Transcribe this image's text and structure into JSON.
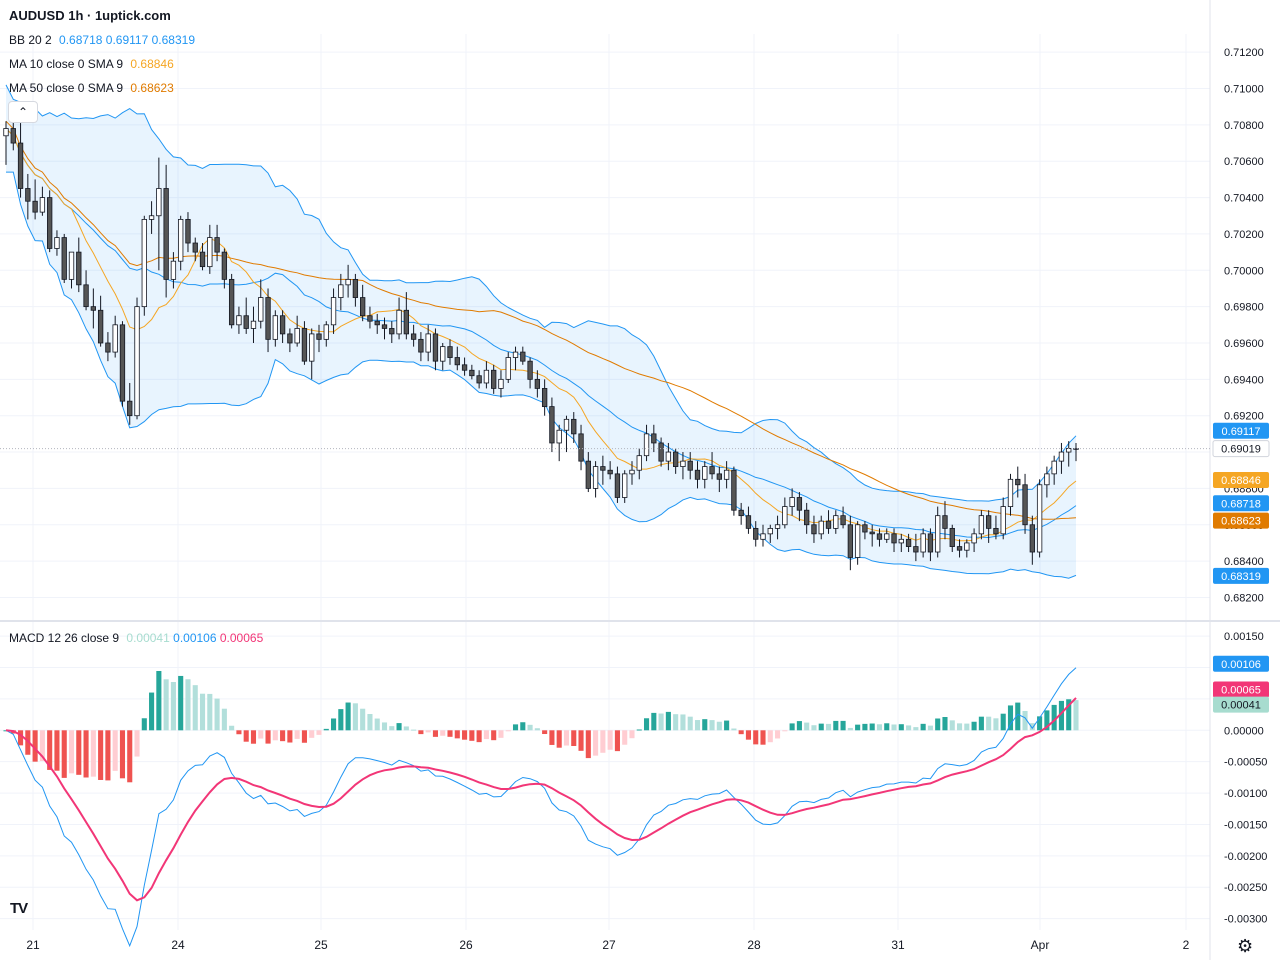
{
  "header": {
    "title": "AUDUSD 1h · 1uptick.com",
    "bb": {
      "label": "BB 20 2",
      "values": [
        "0.68718",
        "0.69117",
        "0.68319"
      ],
      "color": "#2196f3"
    },
    "ma10": {
      "label": "MA 10 close 0 SMA 9",
      "value": "0.68846",
      "color": "#f5a623"
    },
    "ma50": {
      "label": "MA 50 close 0 SMA 9",
      "value": "0.68623",
      "color": "#e07b00"
    },
    "macd": {
      "label": "MACD 12 26 close 9",
      "values": [
        "0.00041",
        "0.00106",
        "0.00065"
      ],
      "colors": [
        "#a7dccf",
        "#2196f3",
        "#f23677"
      ]
    }
  },
  "collapse_icon": "chevron-up-icon",
  "logo_text": "TV",
  "settings_icon": "gear-icon",
  "chart_data": [
    {
      "type": "candlestick",
      "title": "AUDUSD 1h",
      "y_ticks": [
        "0.71200",
        "0.71000",
        "0.70800",
        "0.70600",
        "0.70400",
        "0.70200",
        "0.70000",
        "0.69800",
        "0.69600",
        "0.69400",
        "0.69200",
        "0.69000",
        "0.68800",
        "0.68600",
        "0.68400",
        "0.68200"
      ],
      "ylim": [
        0.6812,
        0.713
      ],
      "x_ticks": [
        "21",
        "24",
        "25",
        "26",
        "27",
        "28",
        "31",
        "Apr",
        "2"
      ],
      "last_price": "0.69019",
      "price_labels": [
        {
          "text": "0.69117",
          "value": 0.69117,
          "color": "#2196f3"
        },
        {
          "text": "0.69019",
          "value": 0.69019,
          "color": "#ffffff"
        },
        {
          "text": "0.68846",
          "value": 0.68846,
          "color": "#f5a623"
        },
        {
          "text": "0.68718",
          "value": 0.68718,
          "color": "#2196f3"
        },
        {
          "text": "0.68623",
          "value": 0.68623,
          "color": "#e07b00"
        },
        {
          "text": "0.68319",
          "value": 0.68319,
          "color": "#2196f3"
        }
      ],
      "ohlc": [
        [
          0.7074,
          0.7082,
          0.7058,
          0.7078
        ],
        [
          0.7078,
          0.7083,
          0.7066,
          0.707
        ],
        [
          0.707,
          0.7081,
          0.704,
          0.7045
        ],
        [
          0.7045,
          0.7053,
          0.7028,
          0.7038
        ],
        [
          0.7038,
          0.705,
          0.7028,
          0.7032
        ],
        [
          0.7032,
          0.7046,
          0.703,
          0.704
        ],
        [
          0.704,
          0.7044,
          0.701,
          0.7012
        ],
        [
          0.7012,
          0.7022,
          0.7008,
          0.7018
        ],
        [
          0.7018,
          0.702,
          0.6993,
          0.6995
        ],
        [
          0.6995,
          0.7008,
          0.699,
          0.701
        ],
        [
          0.701,
          0.7018,
          0.6988,
          0.6992
        ],
        [
          0.6992,
          0.7,
          0.6978,
          0.698
        ],
        [
          0.698,
          0.699,
          0.6968,
          0.6978
        ],
        [
          0.6978,
          0.6986,
          0.6958,
          0.696
        ],
        [
          0.696,
          0.6966,
          0.695,
          0.6955
        ],
        [
          0.6955,
          0.6975,
          0.6952,
          0.697
        ],
        [
          0.697,
          0.6972,
          0.6925,
          0.6928
        ],
        [
          0.6928,
          0.6938,
          0.6915,
          0.692
        ],
        [
          0.692,
          0.6985,
          0.6918,
          0.698
        ],
        [
          0.698,
          0.703,
          0.6975,
          0.7028
        ],
        [
          0.7028,
          0.7038,
          0.702,
          0.703
        ],
        [
          0.703,
          0.7062,
          0.7,
          0.7045
        ],
        [
          0.7045,
          0.7058,
          0.6985,
          0.6995
        ],
        [
          0.6995,
          0.701,
          0.699,
          0.7005
        ],
        [
          0.7005,
          0.703,
          0.7,
          0.7028
        ],
        [
          0.7028,
          0.7032,
          0.701,
          0.7015
        ],
        [
          0.7015,
          0.7018,
          0.7005,
          0.701
        ],
        [
          0.701,
          0.7015,
          0.7,
          0.7002
        ],
        [
          0.7002,
          0.7025,
          0.6998,
          0.7018
        ],
        [
          0.7018,
          0.7025,
          0.7005,
          0.701
        ],
        [
          0.701,
          0.7012,
          0.699,
          0.6995
        ],
        [
          0.6995,
          0.6998,
          0.6968,
          0.697
        ],
        [
          0.697,
          0.698,
          0.6965,
          0.6975
        ],
        [
          0.6975,
          0.6985,
          0.6965,
          0.6968
        ],
        [
          0.6968,
          0.698,
          0.696,
          0.6972
        ],
        [
          0.6972,
          0.6995,
          0.6968,
          0.6985
        ],
        [
          0.6985,
          0.699,
          0.6955,
          0.6962
        ],
        [
          0.6962,
          0.6978,
          0.6958,
          0.6975
        ],
        [
          0.6975,
          0.6978,
          0.696,
          0.6965
        ],
        [
          0.6965,
          0.6968,
          0.6955,
          0.696
        ],
        [
          0.696,
          0.6975,
          0.6958,
          0.6968
        ],
        [
          0.6968,
          0.6972,
          0.6948,
          0.695
        ],
        [
          0.695,
          0.6968,
          0.694,
          0.6965
        ],
        [
          0.6965,
          0.697,
          0.6955,
          0.6962
        ],
        [
          0.6962,
          0.6972,
          0.6958,
          0.697
        ],
        [
          0.697,
          0.699,
          0.6965,
          0.6985
        ],
        [
          0.6985,
          0.6998,
          0.6978,
          0.6992
        ],
        [
          0.6992,
          0.7003,
          0.6985,
          0.6995
        ],
        [
          0.6995,
          0.6998,
          0.698,
          0.6985
        ],
        [
          0.6985,
          0.6992,
          0.6972,
          0.6975
        ],
        [
          0.6975,
          0.698,
          0.6968,
          0.6972
        ],
        [
          0.6972,
          0.6976,
          0.6965,
          0.697
        ],
        [
          0.697,
          0.6974,
          0.6962,
          0.6968
        ],
        [
          0.6968,
          0.6972,
          0.696,
          0.6965
        ],
        [
          0.6965,
          0.6985,
          0.6962,
          0.6978
        ],
        [
          0.6978,
          0.6988,
          0.6962,
          0.6965
        ],
        [
          0.6965,
          0.697,
          0.6958,
          0.6962
        ],
        [
          0.6962,
          0.6966,
          0.695,
          0.6955
        ],
        [
          0.6955,
          0.697,
          0.695,
          0.6965
        ],
        [
          0.6965,
          0.6968,
          0.6945,
          0.695
        ],
        [
          0.695,
          0.696,
          0.6945,
          0.6958
        ],
        [
          0.6958,
          0.6962,
          0.6948,
          0.6952
        ],
        [
          0.6952,
          0.6958,
          0.6945,
          0.6948
        ],
        [
          0.6948,
          0.6952,
          0.6942,
          0.6945
        ],
        [
          0.6945,
          0.6948,
          0.694,
          0.6942
        ],
        [
          0.6942,
          0.6945,
          0.6935,
          0.6938
        ],
        [
          0.6938,
          0.695,
          0.6935,
          0.6945
        ],
        [
          0.6945,
          0.6948,
          0.6932,
          0.6935
        ],
        [
          0.6935,
          0.6945,
          0.693,
          0.694
        ],
        [
          0.694,
          0.6955,
          0.6938,
          0.6952
        ],
        [
          0.6952,
          0.6958,
          0.6945,
          0.6955
        ],
        [
          0.6955,
          0.6958,
          0.6948,
          0.695
        ],
        [
          0.695,
          0.6952,
          0.6935,
          0.694
        ],
        [
          0.694,
          0.6945,
          0.693,
          0.6935
        ],
        [
          0.6935,
          0.694,
          0.692,
          0.6925
        ],
        [
          0.6925,
          0.693,
          0.69,
          0.6905
        ],
        [
          0.6905,
          0.6915,
          0.6895,
          0.6912
        ],
        [
          0.6912,
          0.692,
          0.69,
          0.6918
        ],
        [
          0.6918,
          0.6922,
          0.6905,
          0.691
        ],
        [
          0.691,
          0.6915,
          0.689,
          0.6895
        ],
        [
          0.6895,
          0.69,
          0.6878,
          0.688
        ],
        [
          0.688,
          0.6895,
          0.6875,
          0.6892
        ],
        [
          0.6892,
          0.6898,
          0.6882,
          0.689
        ],
        [
          0.689,
          0.6895,
          0.6885,
          0.6888
        ],
        [
          0.6888,
          0.6892,
          0.6872,
          0.6875
        ],
        [
          0.6875,
          0.689,
          0.6872,
          0.6888
        ],
        [
          0.6888,
          0.6895,
          0.6882,
          0.689
        ],
        [
          0.689,
          0.6902,
          0.6885,
          0.6898
        ],
        [
          0.6898,
          0.6915,
          0.6895,
          0.691
        ],
        [
          0.691,
          0.6915,
          0.69,
          0.6905
        ],
        [
          0.6905,
          0.6908,
          0.6892,
          0.6895
        ],
        [
          0.6895,
          0.6905,
          0.689,
          0.69
        ],
        [
          0.69,
          0.6902,
          0.6888,
          0.6892
        ],
        [
          0.6892,
          0.69,
          0.6885,
          0.6895
        ],
        [
          0.6895,
          0.69,
          0.6885,
          0.689
        ],
        [
          0.689,
          0.6895,
          0.688,
          0.6885
        ],
        [
          0.6885,
          0.6895,
          0.688,
          0.6892
        ],
        [
          0.6892,
          0.69,
          0.6885,
          0.6888
        ],
        [
          0.6888,
          0.6892,
          0.6878,
          0.6885
        ],
        [
          0.6885,
          0.6895,
          0.688,
          0.689
        ],
        [
          0.689,
          0.6892,
          0.6865,
          0.6868
        ],
        [
          0.6868,
          0.6872,
          0.686,
          0.6865
        ],
        [
          0.6865,
          0.687,
          0.6855,
          0.6858
        ],
        [
          0.6858,
          0.6862,
          0.6848,
          0.6852
        ],
        [
          0.6852,
          0.686,
          0.6848,
          0.6855
        ],
        [
          0.6855,
          0.686,
          0.685,
          0.6858
        ],
        [
          0.6858,
          0.6865,
          0.6852,
          0.686
        ],
        [
          0.686,
          0.6875,
          0.6858,
          0.687
        ],
        [
          0.687,
          0.688,
          0.6865,
          0.6875
        ],
        [
          0.6875,
          0.6878,
          0.6862,
          0.6868
        ],
        [
          0.6868,
          0.6872,
          0.6855,
          0.686
        ],
        [
          0.686,
          0.6865,
          0.685,
          0.6855
        ],
        [
          0.6855,
          0.6865,
          0.6852,
          0.6862
        ],
        [
          0.6862,
          0.6868,
          0.6855,
          0.6858
        ],
        [
          0.6858,
          0.6868,
          0.6855,
          0.6865
        ],
        [
          0.6865,
          0.687,
          0.6858,
          0.686
        ],
        [
          0.686,
          0.6865,
          0.6835,
          0.6842
        ],
        [
          0.6842,
          0.6862,
          0.6838,
          0.686
        ],
        [
          0.686,
          0.6862,
          0.6852,
          0.6856
        ],
        [
          0.6856,
          0.686,
          0.6848,
          0.6855
        ],
        [
          0.6855,
          0.6858,
          0.6848,
          0.6852
        ],
        [
          0.6852,
          0.6858,
          0.685,
          0.6855
        ],
        [
          0.6855,
          0.6858,
          0.6845,
          0.685
        ],
        [
          0.685,
          0.6855,
          0.6845,
          0.6852
        ],
        [
          0.6852,
          0.6855,
          0.6845,
          0.6848
        ],
        [
          0.6848,
          0.6855,
          0.684,
          0.6845
        ],
        [
          0.6845,
          0.6858,
          0.6842,
          0.6855
        ],
        [
          0.6855,
          0.6858,
          0.684,
          0.6845
        ],
        [
          0.6845,
          0.687,
          0.6842,
          0.6865
        ],
        [
          0.6865,
          0.6873,
          0.6852,
          0.6858
        ],
        [
          0.6858,
          0.686,
          0.6845,
          0.6848
        ],
        [
          0.6848,
          0.6852,
          0.6842,
          0.6846
        ],
        [
          0.6846,
          0.6852,
          0.6842,
          0.685
        ],
        [
          0.685,
          0.6858,
          0.6845,
          0.6855
        ],
        [
          0.6855,
          0.6868,
          0.6852,
          0.6865
        ],
        [
          0.6865,
          0.6868,
          0.685,
          0.6858
        ],
        [
          0.6858,
          0.6865,
          0.6852,
          0.6855
        ],
        [
          0.6855,
          0.6875,
          0.6852,
          0.687
        ],
        [
          0.687,
          0.6888,
          0.6865,
          0.6885
        ],
        [
          0.6885,
          0.6892,
          0.6875,
          0.6882
        ],
        [
          0.6882,
          0.6888,
          0.6855,
          0.686
        ],
        [
          0.686,
          0.6865,
          0.6838,
          0.6845
        ],
        [
          0.6845,
          0.6885,
          0.6842,
          0.6882
        ],
        [
          0.6882,
          0.6892,
          0.6875,
          0.6888
        ],
        [
          0.6888,
          0.6898,
          0.6882,
          0.6895
        ],
        [
          0.6895,
          0.6905,
          0.6888,
          0.69
        ],
        [
          0.69,
          0.6906,
          0.6892,
          0.6902
        ],
        [
          0.6902,
          0.6905,
          0.6895,
          0.6902
        ]
      ],
      "series": [
        {
          "name": "BB 20 2",
          "color": "#2196f3"
        },
        {
          "name": "MA 10 close 0 SMA 9",
          "color": "#f5a623"
        },
        {
          "name": "MA 50 close 0 SMA 9",
          "color": "#e07b00"
        }
      ]
    },
    {
      "type": "bar",
      "title": "MACD 12 26 close 9",
      "y_ticks": [
        "0.00150",
        "0.00100",
        "0.00050",
        "0.00000",
        "-0.00050",
        "-0.00100",
        "-0.00150",
        "-0.00200",
        "-0.00250",
        "-0.00300"
      ],
      "ylim": [
        -0.00315,
        0.00163
      ],
      "last_values": {
        "histogram": 0.00041,
        "macd": 0.00106,
        "signal": 0.00065
      },
      "price_labels": [
        {
          "text": "0.00106",
          "value": 0.00106,
          "color": "#2196f3"
        },
        {
          "text": "0.00065",
          "value": 0.00065,
          "color": "#f23677"
        },
        {
          "text": "0.00041",
          "value": 0.00041,
          "color": "#a7dccf"
        }
      ],
      "series": [
        {
          "name": "Histogram",
          "colors": [
            "#26a69a",
            "#b2dfdb",
            "#ef5350",
            "#ffcdd2"
          ]
        },
        {
          "name": "MACD",
          "color": "#2196f3"
        },
        {
          "name": "Signal",
          "color": "#f23677"
        }
      ]
    }
  ]
}
